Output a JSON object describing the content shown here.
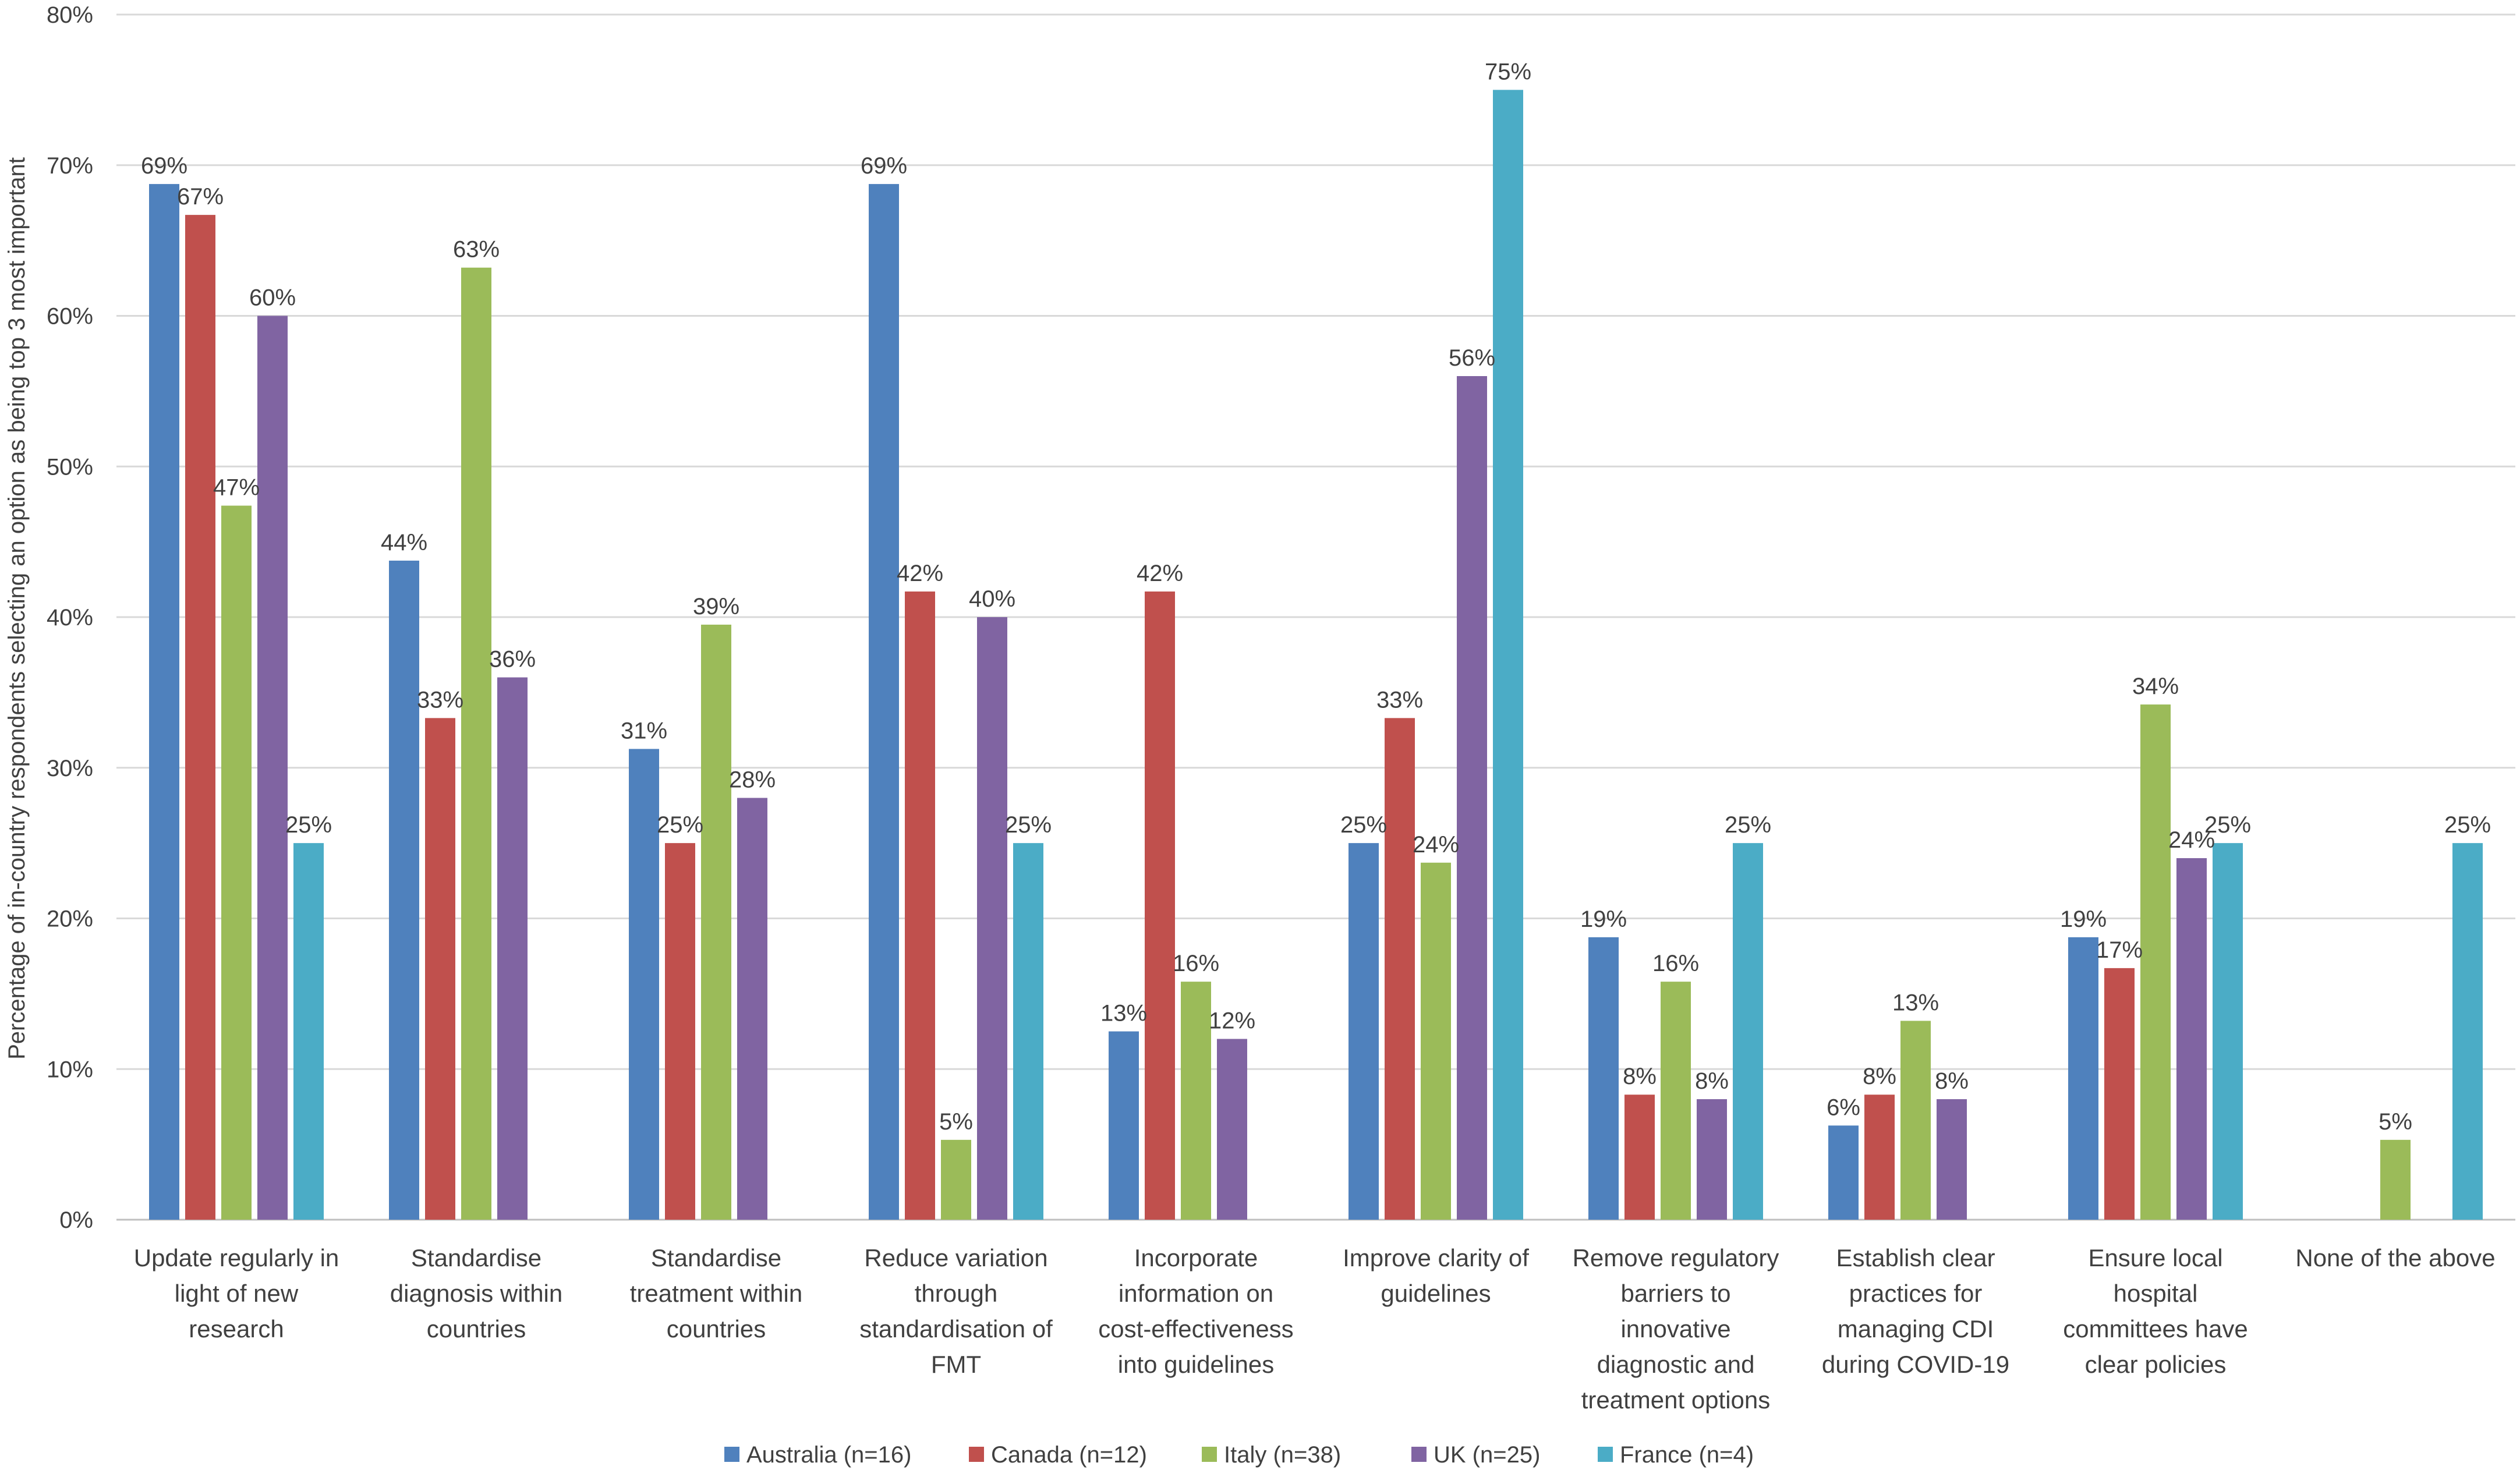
{
  "chart_data": {
    "type": "bar",
    "ylabel": "Percentage of in-country respondents selecting an option as being top 3 most important",
    "ylim": [
      0,
      80
    ],
    "yticks": [
      "0%",
      "10%",
      "20%",
      "30%",
      "40%",
      "50%",
      "60%",
      "70%",
      "80%"
    ],
    "categories": [
      [
        "Update regularly in",
        "light of new",
        "research"
      ],
      [
        "Standardise",
        "diagnosis within",
        "countries"
      ],
      [
        "Standardise",
        "treatment within",
        "countries"
      ],
      [
        "Reduce variation",
        "through",
        "standardisation of",
        "FMT"
      ],
      [
        "Incorporate",
        "information on",
        "cost-effectiveness",
        "into guidelines"
      ],
      [
        "Improve clarity of",
        "guidelines"
      ],
      [
        "Remove regulatory",
        "barriers to",
        "innovative",
        "diagnostic and",
        "treatment options"
      ],
      [
        "Establish clear",
        "practices for",
        "managing CDI",
        "during COVID-19"
      ],
      [
        "Ensure local",
        "hospital",
        "committees have",
        "clear policies"
      ],
      [
        "None of the above"
      ]
    ],
    "series": [
      {
        "name": "Australia (n=16)",
        "color": "#4F81BD",
        "values": [
          68.75,
          43.75,
          31.25,
          68.75,
          12.5,
          25,
          18.75,
          6.25,
          18.75,
          null
        ],
        "labels": [
          "69%",
          "44%",
          "31%",
          "69%",
          "13%",
          "25%",
          "19%",
          "6%",
          "19%",
          null
        ]
      },
      {
        "name": "Canada (n=12)",
        "color": "#C0504D",
        "values": [
          66.7,
          33.3,
          25,
          41.7,
          41.7,
          33.3,
          8.3,
          8.3,
          16.7,
          null
        ],
        "labels": [
          "67%",
          "33%",
          "25%",
          "42%",
          "42%",
          "33%",
          "8%",
          "8%",
          "17%",
          null
        ]
      },
      {
        "name": "Italy (n=38)",
        "color": "#9BBB59",
        "values": [
          47.4,
          63.2,
          39.5,
          5.3,
          15.8,
          23.7,
          15.8,
          13.2,
          34.2,
          5.3
        ],
        "labels": [
          "47%",
          "63%",
          "39%",
          "5%",
          "16%",
          "24%",
          "16%",
          "13%",
          "34%",
          "5%"
        ]
      },
      {
        "name": "UK (n=25)",
        "color": "#8064A2",
        "values": [
          60,
          36,
          28,
          40,
          12,
          56,
          8,
          8,
          24,
          null
        ],
        "labels": [
          "60%",
          "36%",
          "28%",
          "40%",
          "12%",
          "56%",
          "8%",
          "8%",
          "24%",
          null
        ]
      },
      {
        "name": "France (n=4)",
        "color": "#4BACC6",
        "values": [
          25,
          null,
          null,
          25,
          null,
          75,
          25,
          null,
          25,
          25
        ],
        "labels": [
          "25%",
          null,
          null,
          "25%",
          null,
          "75%",
          "25%",
          null,
          "25%",
          "25%"
        ]
      }
    ],
    "grid": true,
    "legend": "bottom-center"
  }
}
